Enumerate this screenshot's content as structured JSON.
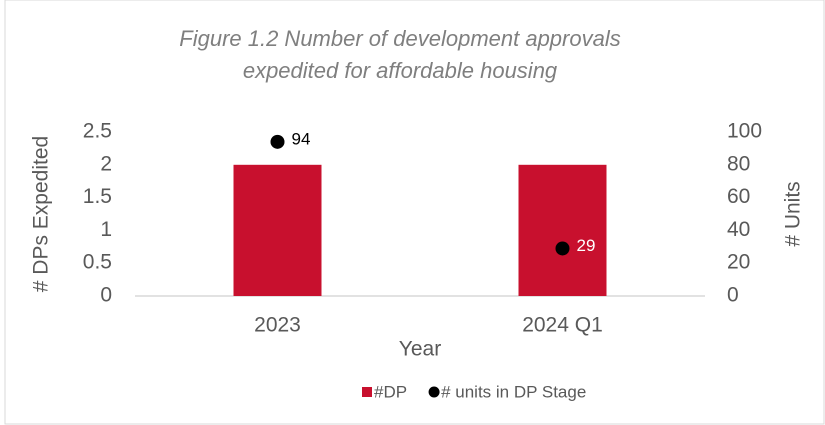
{
  "chart_data": {
    "type": "bar",
    "title": [
      "Figure 1.2 Number of development approvals",
      "expedited for affordable housing"
    ],
    "categories": [
      "2023",
      "2024 Q1"
    ],
    "x_label": "Year",
    "y_label": "# DPs Expedited",
    "y2_label": "# Units",
    "series": [
      {
        "name": "#DP",
        "type": "bar",
        "color": "#c8102e",
        "values": [
          2,
          2
        ]
      },
      {
        "name": "# units in DP Stage",
        "type": "scatter",
        "color": "#000000",
        "axis": "y2",
        "values": [
          94,
          29
        ]
      }
    ],
    "ylim": [
      0,
      2.5
    ],
    "yticks": [
      0,
      0.5,
      1,
      1.5,
      2,
      2.5
    ],
    "y2lim": [
      0,
      100
    ],
    "y2ticks": [
      0,
      20,
      40,
      60,
      80,
      100
    ],
    "grid": false,
    "legend": "bottom"
  }
}
